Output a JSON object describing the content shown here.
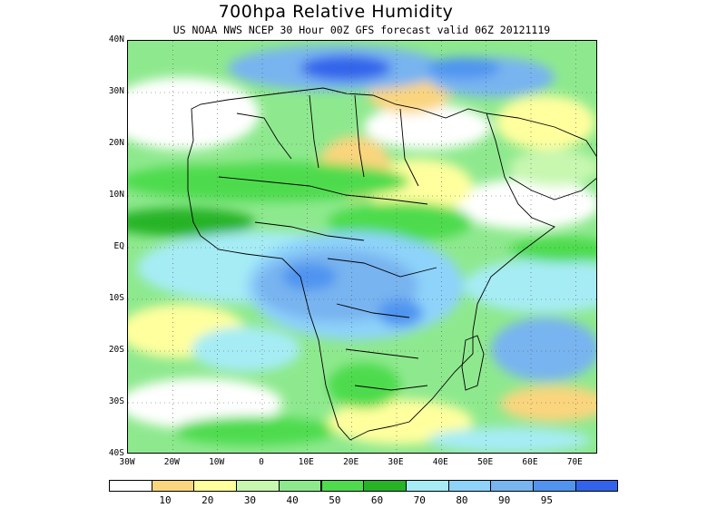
{
  "title": "700hpa Relative Humidity",
  "subtitle": "US NOAA NWS NCEP 30 Hour 00Z GFS forecast valid 06Z 20121119",
  "map": {
    "lat_labels": [
      "40N",
      "30N",
      "20N",
      "10N",
      "EQ",
      "10S",
      "20S",
      "30S",
      "40S"
    ],
    "lon_labels": [
      "30W",
      "20W",
      "10W",
      "0",
      "10E",
      "20E",
      "30E",
      "40E",
      "50E",
      "60E",
      "70E"
    ],
    "lat_range": [
      -40,
      40
    ],
    "lon_range": [
      -30,
      75
    ],
    "gridlines": "dotted"
  },
  "legend": {
    "colors": [
      "#ffffff",
      "#fad57e",
      "#ffff9e",
      "#c8f7b0",
      "#8ee98e",
      "#4edb4e",
      "#26b326",
      "#a6ecf5",
      "#8ed3fa",
      "#78b4f0",
      "#5094f0",
      "#3264eb"
    ],
    "labels": [
      "10",
      "20",
      "30",
      "40",
      "50",
      "60",
      "70",
      "80",
      "90",
      "95"
    ]
  }
}
